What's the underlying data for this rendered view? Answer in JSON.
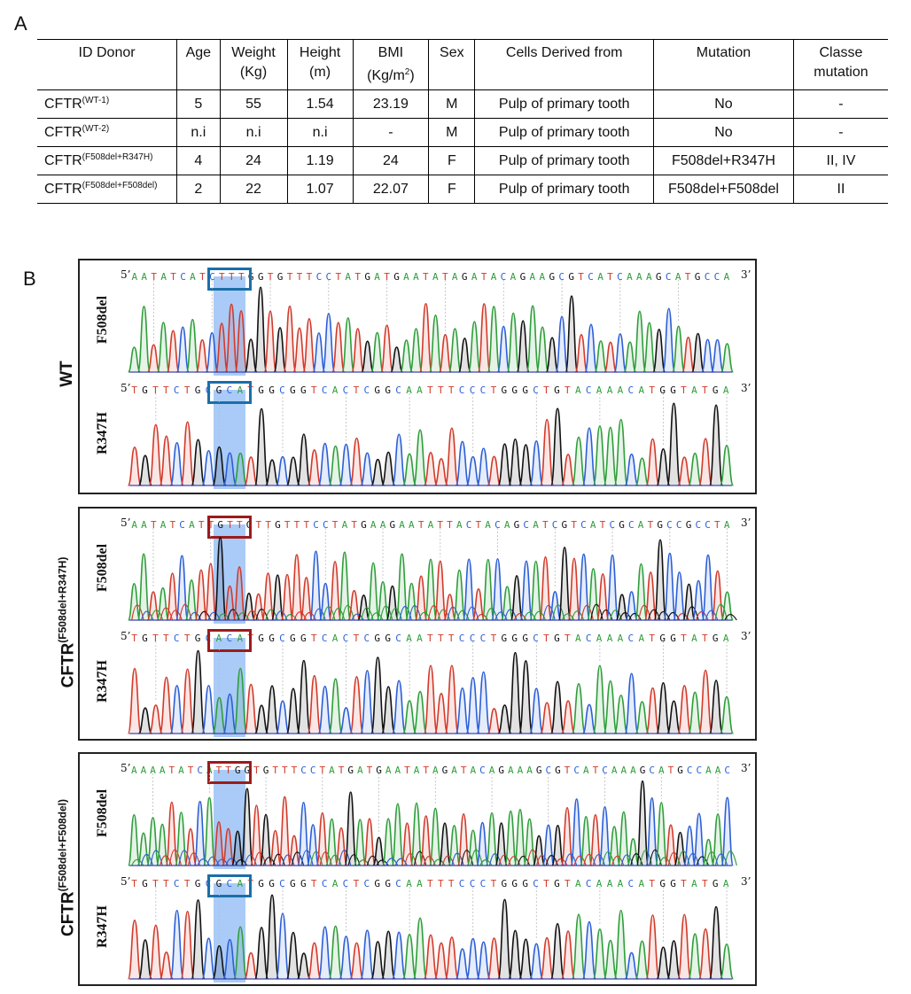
{
  "panel_a_letter": "A",
  "panel_b_letter": "B",
  "table": {
    "headers": {
      "id": "ID Donor",
      "age": "Age",
      "weight_1": "Weight",
      "weight_2": "(Kg)",
      "height_1": "Height",
      "height_2": "(m)",
      "bmi_1": "BMI",
      "bmi_2": "(Kg/m",
      "bmi_sup": "2",
      "bmi_3": ")",
      "sex": "Sex",
      "cells": "Cells Derived from",
      "mutation": "Mutation",
      "classe_1": "Classe",
      "classe_2": "mutation"
    },
    "rows": [
      {
        "id": "CFTR",
        "id_sup": "(WT-1)",
        "age": "5",
        "weight": "55",
        "height": "1.54",
        "bmi": "23.19",
        "sex": "M",
        "cells": "Pulp of primary tooth",
        "mutation": "No",
        "classe": "-"
      },
      {
        "id": "CFTR",
        "id_sup": "(WT-2)",
        "age": "n.i",
        "weight": "n.i",
        "height": "n.i",
        "bmi": "-",
        "sex": "M",
        "cells": "Pulp of primary tooth",
        "mutation": "No",
        "classe": "-"
      },
      {
        "id": "CFTR",
        "id_sup": "(F508del+R347H)",
        "age": "4",
        "weight": "24",
        "height": "1.19",
        "bmi": "24",
        "sex": "F",
        "cells": "Pulp of primary tooth",
        "mutation": "F508del+R347H",
        "classe": "II, IV"
      },
      {
        "id": "CFTR",
        "id_sup": "(F508del+F508del)",
        "age": "2",
        "weight": "22",
        "height": "1.07",
        "bmi": "22.07",
        "sex": "F",
        "cells": "Pulp of primary tooth",
        "mutation": "F508del+F508del",
        "classe": "II"
      }
    ]
  },
  "groups": [
    {
      "label": "WT",
      "label_sup": "",
      "tracks": [
        {
          "name": "F508del",
          "seq": "AATATCATCTTTGGTGTTTCCTATGATGAATATAGATACAGAAGCGTCATCAAAGCATGCCA",
          "box_color": "#1a6fa8"
        },
        {
          "name": "R347H",
          "seq": "TGTTCTGCGCATGGCGGTCACTCGGCAATTTCCCTGGGCTGTACAAACATGGTATGA",
          "box_color": "#1a6fa8"
        }
      ]
    },
    {
      "label": "CFTR",
      "label_sup": "(F508del+R347H)",
      "tracks": [
        {
          "name": "F508del",
          "seq": "AATATCATTGTTGTTGTTTCCTATGAAGAATATTACTACAGCATCGTCATCGCATGCCGCCTA",
          "box_color": "#9b1c1c"
        },
        {
          "name": "R347H",
          "seq": "TGTTCTGCACATGGCGGTCACTCGGCAATTTCCCTGGGCTGTACAAACATGGTATGA",
          "box_color": "#9b1c1c"
        }
      ]
    },
    {
      "label": "CFTR",
      "label_sup": "(F508del+F508del)",
      "tracks": [
        {
          "name": "F508del",
          "seq": "AAAATATCATTGGTGTTTCCTATGATGAATATAGATACAGAAAGCGTCATCAAAGCATGCCAAC",
          "box_color": "#9b1c1c"
        },
        {
          "name": "R347H",
          "seq": "TGTTCTGCGCATGGCGGTCACTCGGCAATTTCCCTGGGCTGTACAAACATGGTATGA",
          "box_color": "#1a6fa8"
        }
      ]
    }
  ],
  "prime5": "5’",
  "prime3": "3’",
  "base_colors": {
    "A": "#2e9e3a",
    "C": "#2c5fd6",
    "G": "#111111",
    "T": "#d23a2a"
  }
}
